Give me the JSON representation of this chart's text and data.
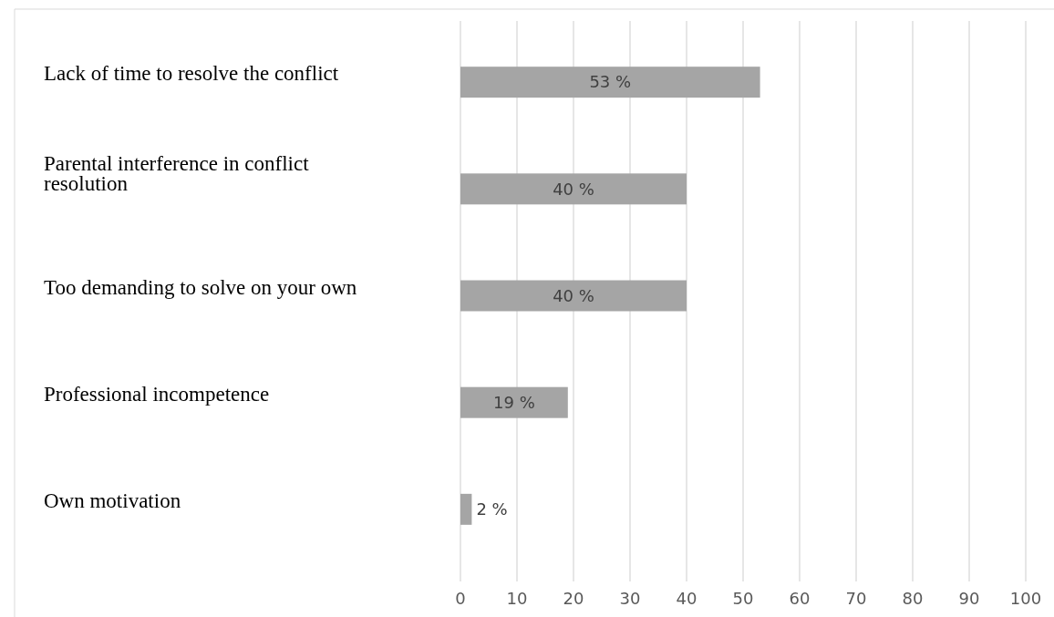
{
  "chart_data": {
    "type": "bar",
    "orientation": "horizontal",
    "categories": [
      "Lack of time to resolve the conflict",
      "Parental interference in conflict resolution",
      "Too demanding to solve on your own",
      "Professional incompetence",
      "Own motivation"
    ],
    "values": [
      53,
      40,
      40,
      19,
      2
    ],
    "value_labels": [
      "53 %",
      "40 %",
      "40 %",
      "19 %",
      "2 %"
    ],
    "color": "#a5a5a5",
    "xlim": [
      0,
      100
    ],
    "xticks": [
      0,
      10,
      20,
      30,
      40,
      50,
      60,
      70,
      80,
      90,
      100
    ],
    "grid": "x"
  }
}
